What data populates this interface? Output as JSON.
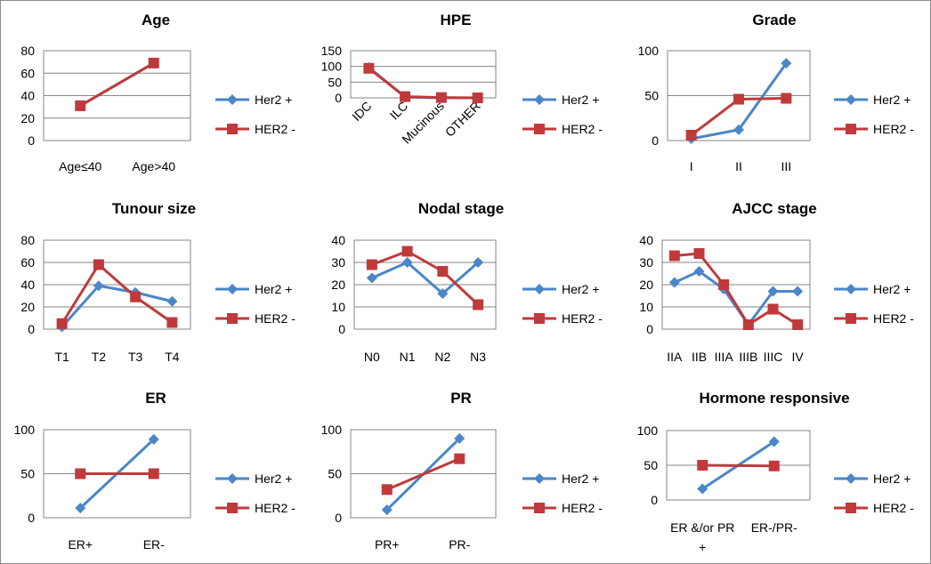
{
  "colors": {
    "her2_pos": "#4a86c8",
    "her2_neg": "#c0393b"
  },
  "chart_data": [
    {
      "type": "line",
      "title": "Age",
      "categories": [
        "Age≤40",
        "Age>40"
      ],
      "ylim": [
        0,
        80
      ],
      "yticks": [
        0,
        20,
        40,
        60,
        80
      ],
      "series": [
        {
          "name": "Her2 +",
          "values": [
            31,
            69
          ]
        },
        {
          "name": "HER2 -",
          "values": [
            31,
            69
          ]
        }
      ]
    },
    {
      "type": "line",
      "title": "HPE",
      "categories": [
        "IDC",
        "ILC",
        "Mucinous",
        "OTHER"
      ],
      "ylim": [
        0,
        150
      ],
      "yticks": [
        0,
        50,
        100,
        150
      ],
      "series": [
        {
          "name": "Her2 +",
          "values": [
            97,
            2,
            0,
            0
          ]
        },
        {
          "name": "HER2 -",
          "values": [
            94,
            4,
            1,
            0
          ]
        }
      ]
    },
    {
      "type": "line",
      "title": "Grade",
      "categories": [
        "I",
        "II",
        "III"
      ],
      "ylim": [
        0,
        100
      ],
      "yticks": [
        0,
        50,
        100
      ],
      "series": [
        {
          "name": "Her2 +",
          "values": [
            2,
            12,
            86
          ]
        },
        {
          "name": "HER2 -",
          "values": [
            6,
            46,
            47
          ]
        }
      ]
    },
    {
      "type": "line",
      "title": "Tunour size",
      "categories": [
        "T1",
        "T2",
        "T3",
        "T4"
      ],
      "ylim": [
        0,
        80
      ],
      "yticks": [
        0,
        20,
        40,
        60,
        80
      ],
      "series": [
        {
          "name": "Her2 +",
          "values": [
            2,
            39,
            33,
            25
          ]
        },
        {
          "name": "HER2 -",
          "values": [
            5,
            58,
            29,
            6
          ]
        }
      ]
    },
    {
      "type": "line",
      "title": "Nodal stage",
      "categories": [
        "N0",
        "N1",
        "N2",
        "N3"
      ],
      "ylim": [
        0,
        40
      ],
      "yticks": [
        0,
        10,
        20,
        30,
        40
      ],
      "series": [
        {
          "name": "Her2 +",
          "values": [
            23,
            30,
            16,
            30
          ]
        },
        {
          "name": "HER2 -",
          "values": [
            29,
            35,
            26,
            11
          ]
        }
      ]
    },
    {
      "type": "line",
      "title": "AJCC stage",
      "categories": [
        "IIA",
        "IIB",
        "IIIA",
        "IIIB",
        "IIIC",
        "IV"
      ],
      "ylim": [
        0,
        40
      ],
      "yticks": [
        0,
        10,
        20,
        30,
        40
      ],
      "series": [
        {
          "name": "Her2 +",
          "values": [
            21,
            26,
            18,
            2,
            17,
            17
          ]
        },
        {
          "name": "HER2 -",
          "values": [
            33,
            34,
            20,
            2,
            9,
            2
          ]
        }
      ]
    },
    {
      "type": "line",
      "title": "ER",
      "categories": [
        "ER+",
        "ER-"
      ],
      "ylim": [
        0,
        100
      ],
      "yticks": [
        0,
        50,
        100
      ],
      "series": [
        {
          "name": "Her2 +",
          "values": [
            11,
            89
          ]
        },
        {
          "name": "HER2 -",
          "values": [
            50,
            50
          ]
        }
      ]
    },
    {
      "type": "line",
      "title": "PR",
      "categories": [
        "PR+",
        "PR-"
      ],
      "ylim": [
        0,
        100
      ],
      "yticks": [
        0,
        50,
        100
      ],
      "series": [
        {
          "name": "Her2 +",
          "values": [
            9,
            90
          ]
        },
        {
          "name": "HER2 -",
          "values": [
            32,
            67
          ]
        }
      ]
    },
    {
      "type": "line",
      "title": "Hormone responsive",
      "categories": [
        "ER &/or PR +",
        "ER-/PR-"
      ],
      "ylim": [
        0,
        100
      ],
      "yticks": [
        0,
        50,
        100
      ],
      "series": [
        {
          "name": "Her2 +",
          "values": [
            16,
            84
          ]
        },
        {
          "name": "HER2 -",
          "values": [
            50,
            49
          ]
        }
      ]
    }
  ]
}
